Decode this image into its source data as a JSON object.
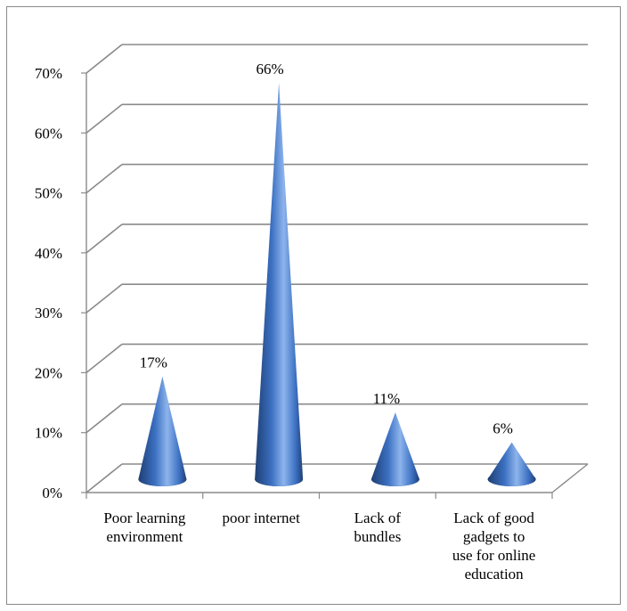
{
  "chart_data": {
    "type": "bar",
    "style": "3d-cone",
    "categories": [
      [
        "Poor learning",
        "environment"
      ],
      [
        "poor internet"
      ],
      [
        "Lack of",
        "bundles"
      ],
      [
        "Lack of good",
        "gadgets to",
        "use for online",
        "education"
      ]
    ],
    "values": [
      17,
      66,
      11,
      6
    ],
    "data_labels": [
      "17%",
      "66%",
      "11%",
      "6%"
    ],
    "y_ticks": [
      "0%",
      "10%",
      "20%",
      "30%",
      "40%",
      "50%",
      "60%",
      "70%"
    ],
    "ylim": [
      0,
      70
    ],
    "grid": true,
    "legend": "none",
    "colors": {
      "cone_dark": "#1f3f73",
      "cone_mid": "#3c70c2",
      "cone_light": "#8db4ec",
      "grid": "#8a8a8a"
    }
  }
}
